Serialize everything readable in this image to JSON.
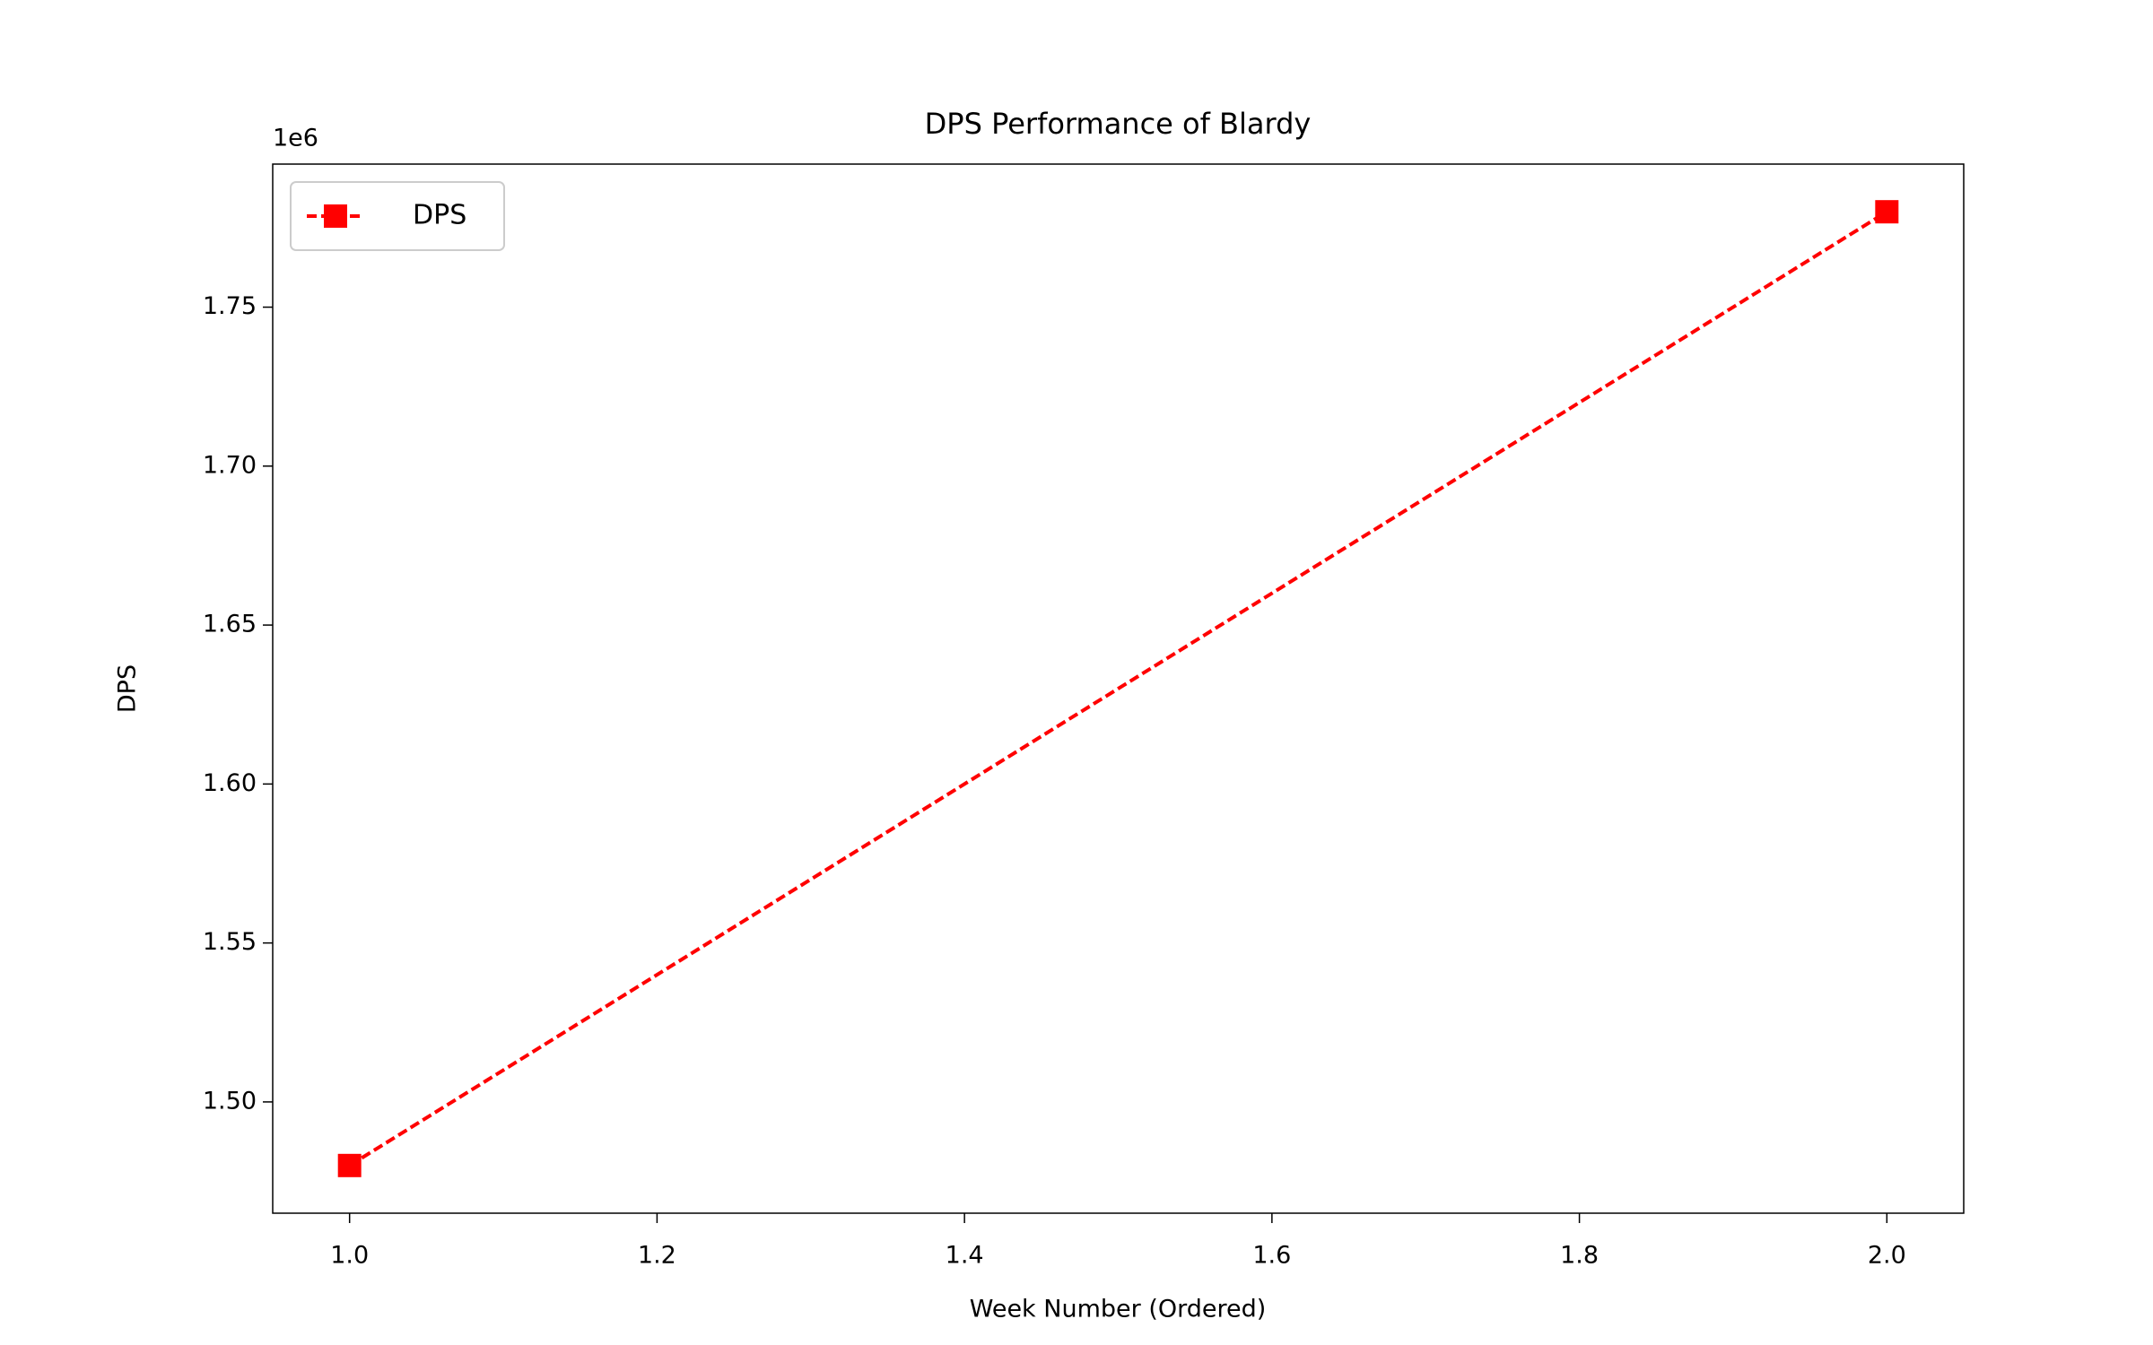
{
  "chart_data": {
    "type": "line",
    "title": "DPS Performance of Blardy",
    "x_label": "Week Number (Ordered)",
    "y_label": "DPS",
    "y_offset_label": "1e6",
    "x": [
      1,
      2
    ],
    "series": [
      {
        "name": "DPS",
        "color": "#ff0000",
        "values": [
          1480000,
          1780000
        ]
      }
    ],
    "xlim": [
      0.95,
      2.05
    ],
    "ylim": [
      1465000,
      1795000
    ],
    "xticks": [
      {
        "value": 1,
        "label": "1.0"
      },
      1.2,
      1.4,
      1.6,
      1.8,
      {
        "value": 2,
        "label": "2.0"
      }
    ],
    "yticks": [
      {
        "value": 1500000,
        "label": "1.50"
      },
      {
        "value": 1550000,
        "label": "1.55"
      },
      {
        "value": 1600000,
        "label": "1.60"
      },
      {
        "value": 1650000,
        "label": "1.65"
      },
      {
        "value": 1700000,
        "label": "1.70"
      },
      {
        "value": 1750000,
        "label": "1.75"
      }
    ],
    "line_style": "dashed",
    "marker": "square",
    "legend": "upper left",
    "grid": false
  }
}
